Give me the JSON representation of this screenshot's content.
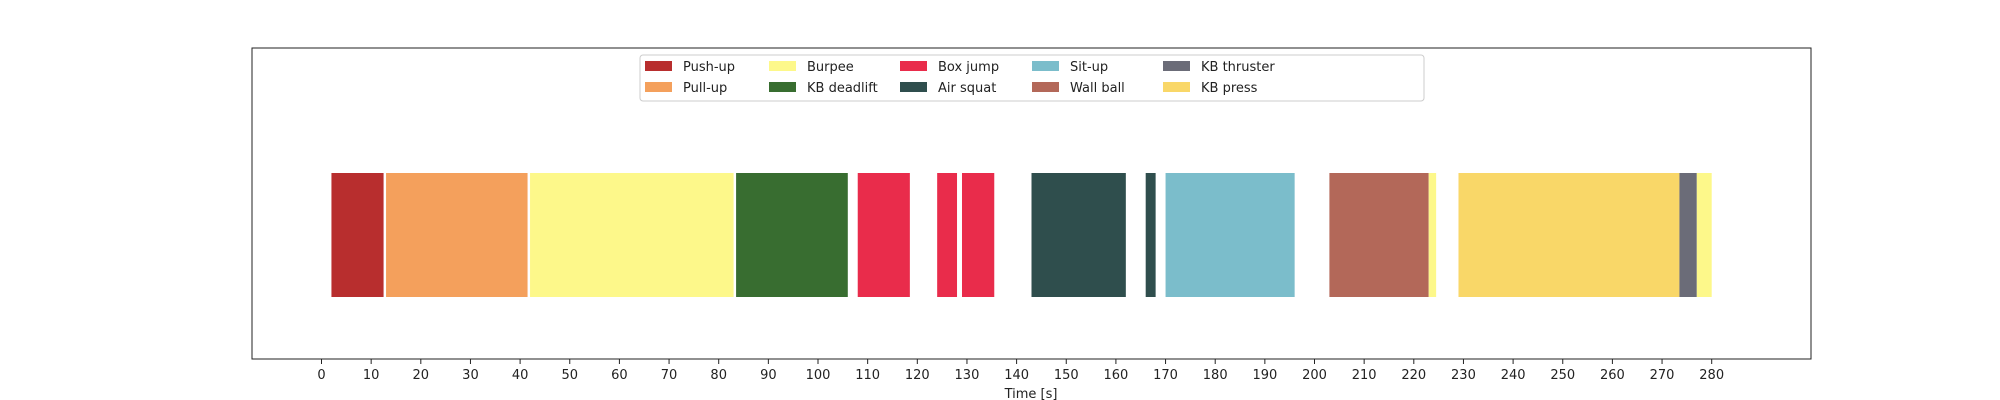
{
  "chart_data": {
    "type": "bar",
    "orientation": "horizontal-timeline",
    "xlabel": "Time [s]",
    "xlim": [
      -14,
      300
    ],
    "xticks": [
      0,
      10,
      20,
      30,
      40,
      50,
      60,
      70,
      80,
      90,
      100,
      110,
      120,
      130,
      140,
      150,
      160,
      170,
      180,
      190,
      200,
      210,
      220,
      230,
      240,
      250,
      260,
      270,
      280
    ],
    "grid": false,
    "legend_position": "top-center",
    "categories": [
      {
        "name": "Push-up",
        "color": "#b82e2e"
      },
      {
        "name": "Pull-up",
        "color": "#f4a05c"
      },
      {
        "name": "Burpee",
        "color": "#fdf88a"
      },
      {
        "name": "KB deadlift",
        "color": "#386d30"
      },
      {
        "name": "Box jump",
        "color": "#e92c4b"
      },
      {
        "name": "Air squat",
        "color": "#2f4e4d"
      },
      {
        "name": "Sit-up",
        "color": "#7bbdcb"
      },
      {
        "name": "Wall ball",
        "color": "#b36859"
      },
      {
        "name": "KB thruster",
        "color": "#6b6c78"
      },
      {
        "name": "KB press",
        "color": "#f9d768"
      }
    ],
    "segments": [
      {
        "exercise": "Push-up",
        "start": 2,
        "end": 12.5
      },
      {
        "exercise": "Pull-up",
        "start": 13,
        "end": 41.5
      },
      {
        "exercise": "Burpee",
        "start": 42,
        "end": 83
      },
      {
        "exercise": "KB deadlift",
        "start": 83.5,
        "end": 106
      },
      {
        "exercise": "Box jump",
        "start": 108,
        "end": 118.5
      },
      {
        "exercise": "Box jump",
        "start": 124,
        "end": 128
      },
      {
        "exercise": "Box jump",
        "start": 129,
        "end": 135.5
      },
      {
        "exercise": "Air squat",
        "start": 143,
        "end": 162
      },
      {
        "exercise": "Air squat",
        "start": 166,
        "end": 168
      },
      {
        "exercise": "Sit-up",
        "start": 170,
        "end": 196
      },
      {
        "exercise": "Wall ball",
        "start": 203,
        "end": 223
      },
      {
        "exercise": "Burpee",
        "start": 223,
        "end": 224.5
      },
      {
        "exercise": "KB press",
        "start": 229,
        "end": 273.5
      },
      {
        "exercise": "KB thruster",
        "start": 273.5,
        "end": 277
      },
      {
        "exercise": "Burpee",
        "start": 277,
        "end": 280
      }
    ]
  }
}
